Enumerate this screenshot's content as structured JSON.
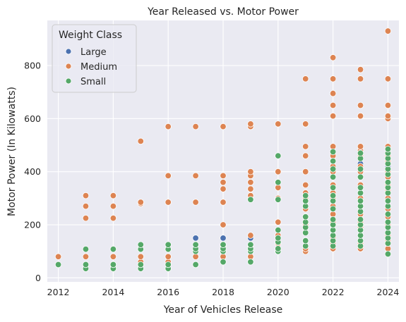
{
  "chart_data": {
    "type": "scatter",
    "title": "Year Released vs. Motor Power",
    "xlabel": "Year of Vehicles Release",
    "ylabel": "Motor Power (In Kilowatts)",
    "xlim": [
      2011.6,
      2024.4
    ],
    "ylim": [
      -15,
      970
    ],
    "xticks": [
      "2012",
      "2014",
      "2016",
      "2018",
      "2020",
      "2022",
      "2024"
    ],
    "yticks": [
      "0",
      "200",
      "400",
      "600",
      "800"
    ],
    "grid": true,
    "legend": {
      "title": "Weight Class",
      "placement": "top-left"
    },
    "series": [
      {
        "name": "Large",
        "color": "#4c72b0",
        "points": [
          [
            2017,
            150
          ],
          [
            2018,
            80
          ],
          [
            2018,
            150
          ],
          [
            2019,
            80
          ],
          [
            2019,
            150
          ],
          [
            2021,
            260
          ],
          [
            2022,
            240
          ],
          [
            2023,
            430
          ],
          [
            2024,
            420
          ]
        ]
      },
      {
        "name": "Medium",
        "color": "#dd8452",
        "points": [
          [
            2012,
            80
          ],
          [
            2013,
            80
          ],
          [
            2013,
            225
          ],
          [
            2013,
            270
          ],
          [
            2013,
            310
          ],
          [
            2014,
            80
          ],
          [
            2014,
            225
          ],
          [
            2014,
            270
          ],
          [
            2014,
            310
          ],
          [
            2015,
            60
          ],
          [
            2015,
            80
          ],
          [
            2015,
            280
          ],
          [
            2015,
            285
          ],
          [
            2015,
            515
          ],
          [
            2016,
            60
          ],
          [
            2016,
            80
          ],
          [
            2016,
            285
          ],
          [
            2016,
            385
          ],
          [
            2016,
            570
          ],
          [
            2017,
            80
          ],
          [
            2017,
            285
          ],
          [
            2017,
            385
          ],
          [
            2017,
            570
          ],
          [
            2018,
            80
          ],
          [
            2018,
            100
          ],
          [
            2018,
            120
          ],
          [
            2018,
            200
          ],
          [
            2018,
            285
          ],
          [
            2018,
            335
          ],
          [
            2018,
            360
          ],
          [
            2018,
            385
          ],
          [
            2018,
            570
          ],
          [
            2019,
            80
          ],
          [
            2019,
            100
          ],
          [
            2019,
            120
          ],
          [
            2019,
            160
          ],
          [
            2019,
            310
          ],
          [
            2019,
            335
          ],
          [
            2019,
            360
          ],
          [
            2019,
            385
          ],
          [
            2019,
            400
          ],
          [
            2019,
            570
          ],
          [
            2019,
            580
          ],
          [
            2020,
            100
          ],
          [
            2020,
            130
          ],
          [
            2020,
            160
          ],
          [
            2020,
            210
          ],
          [
            2020,
            300
          ],
          [
            2020,
            340
          ],
          [
            2020,
            400
          ],
          [
            2020,
            580
          ],
          [
            2021,
            100
          ],
          [
            2021,
            110
          ],
          [
            2021,
            120
          ],
          [
            2021,
            140
          ],
          [
            2021,
            170
          ],
          [
            2021,
            200
          ],
          [
            2021,
            230
          ],
          [
            2021,
            260
          ],
          [
            2021,
            300
          ],
          [
            2021,
            320
          ],
          [
            2021,
            350
          ],
          [
            2021,
            400
          ],
          [
            2021,
            460
          ],
          [
            2021,
            495
          ],
          [
            2021,
            580
          ],
          [
            2021,
            750
          ],
          [
            2022,
            110
          ],
          [
            2022,
            130
          ],
          [
            2022,
            150
          ],
          [
            2022,
            180
          ],
          [
            2022,
            210
          ],
          [
            2022,
            240
          ],
          [
            2022,
            270
          ],
          [
            2022,
            300
          ],
          [
            2022,
            320
          ],
          [
            2022,
            350
          ],
          [
            2022,
            400
          ],
          [
            2022,
            420
          ],
          [
            2022,
            460
          ],
          [
            2022,
            495
          ],
          [
            2022,
            610
          ],
          [
            2022,
            650
          ],
          [
            2022,
            695
          ],
          [
            2022,
            750
          ],
          [
            2022,
            830
          ],
          [
            2023,
            110
          ],
          [
            2023,
            130
          ],
          [
            2023,
            160
          ],
          [
            2023,
            190
          ],
          [
            2023,
            210
          ],
          [
            2023,
            240
          ],
          [
            2023,
            270
          ],
          [
            2023,
            300
          ],
          [
            2023,
            320
          ],
          [
            2023,
            350
          ],
          [
            2023,
            400
          ],
          [
            2023,
            420
          ],
          [
            2023,
            460
          ],
          [
            2023,
            480
          ],
          [
            2023,
            495
          ],
          [
            2023,
            610
          ],
          [
            2023,
            650
          ],
          [
            2023,
            750
          ],
          [
            2023,
            785
          ],
          [
            2024,
            110
          ],
          [
            2024,
            140
          ],
          [
            2024,
            160
          ],
          [
            2024,
            200
          ],
          [
            2024,
            230
          ],
          [
            2024,
            260
          ],
          [
            2024,
            300
          ],
          [
            2024,
            330
          ],
          [
            2024,
            350
          ],
          [
            2024,
            380
          ],
          [
            2024,
            400
          ],
          [
            2024,
            440
          ],
          [
            2024,
            460
          ],
          [
            2024,
            495
          ],
          [
            2024,
            600
          ],
          [
            2024,
            610
          ],
          [
            2024,
            650
          ],
          [
            2024,
            750
          ],
          [
            2024,
            930
          ]
        ]
      },
      {
        "name": "Small",
        "color": "#55a868",
        "points": [
          [
            2012,
            50
          ],
          [
            2013,
            35
          ],
          [
            2013,
            50
          ],
          [
            2013,
            108
          ],
          [
            2014,
            35
          ],
          [
            2014,
            50
          ],
          [
            2014,
            108
          ],
          [
            2015,
            35
          ],
          [
            2015,
            50
          ],
          [
            2015,
            108
          ],
          [
            2015,
            125
          ],
          [
            2016,
            35
          ],
          [
            2016,
            50
          ],
          [
            2016,
            108
          ],
          [
            2016,
            125
          ],
          [
            2017,
            50
          ],
          [
            2017,
            100
          ],
          [
            2017,
            110
          ],
          [
            2017,
            125
          ],
          [
            2018,
            60
          ],
          [
            2018,
            100
          ],
          [
            2018,
            110
          ],
          [
            2018,
            125
          ],
          [
            2019,
            60
          ],
          [
            2019,
            100
          ],
          [
            2019,
            110
          ],
          [
            2019,
            125
          ],
          [
            2019,
            295
          ],
          [
            2020,
            100
          ],
          [
            2020,
            110
          ],
          [
            2020,
            135
          ],
          [
            2020,
            150
          ],
          [
            2020,
            180
          ],
          [
            2020,
            295
          ],
          [
            2020,
            360
          ],
          [
            2020,
            460
          ],
          [
            2021,
            120
          ],
          [
            2021,
            140
          ],
          [
            2021,
            170
          ],
          [
            2021,
            190
          ],
          [
            2021,
            210
          ],
          [
            2021,
            230
          ],
          [
            2021,
            270
          ],
          [
            2021,
            290
          ],
          [
            2021,
            310
          ],
          [
            2022,
            120
          ],
          [
            2022,
            140
          ],
          [
            2022,
            160
          ],
          [
            2022,
            180
          ],
          [
            2022,
            200
          ],
          [
            2022,
            220
          ],
          [
            2022,
            260
          ],
          [
            2022,
            290
          ],
          [
            2022,
            310
          ],
          [
            2022,
            340
          ],
          [
            2022,
            380
          ],
          [
            2022,
            410
          ],
          [
            2022,
            440
          ],
          [
            2022,
            475
          ],
          [
            2023,
            120
          ],
          [
            2023,
            140
          ],
          [
            2023,
            160
          ],
          [
            2023,
            180
          ],
          [
            2023,
            200
          ],
          [
            2023,
            220
          ],
          [
            2023,
            250
          ],
          [
            2023,
            270
          ],
          [
            2023,
            290
          ],
          [
            2023,
            320
          ],
          [
            2023,
            340
          ],
          [
            2023,
            380
          ],
          [
            2023,
            410
          ],
          [
            2023,
            450
          ],
          [
            2023,
            470
          ],
          [
            2024,
            90
          ],
          [
            2024,
            130
          ],
          [
            2024,
            150
          ],
          [
            2024,
            170
          ],
          [
            2024,
            190
          ],
          [
            2024,
            210
          ],
          [
            2024,
            240
          ],
          [
            2024,
            270
          ],
          [
            2024,
            290
          ],
          [
            2024,
            320
          ],
          [
            2024,
            340
          ],
          [
            2024,
            360
          ],
          [
            2024,
            390
          ],
          [
            2024,
            410
          ],
          [
            2024,
            430
          ],
          [
            2024,
            450
          ],
          [
            2024,
            470
          ],
          [
            2024,
            485
          ]
        ]
      }
    ]
  }
}
